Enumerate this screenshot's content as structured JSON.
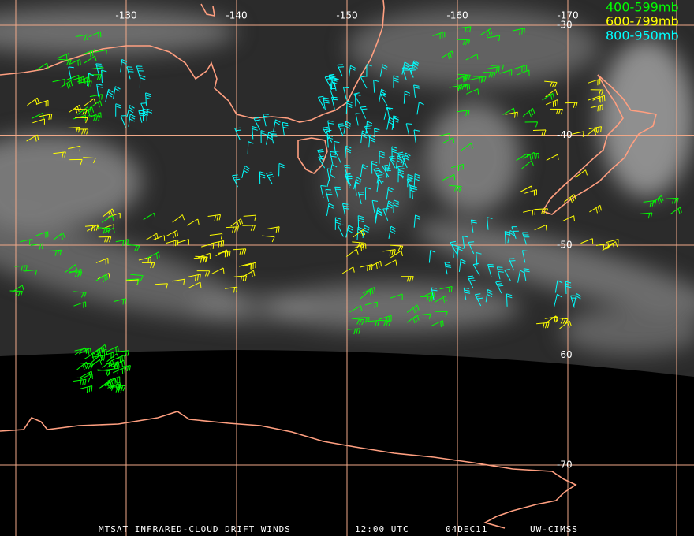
{
  "map": {
    "longitudes": [
      -130,
      -140,
      -150,
      -160,
      -170
    ],
    "latitudes": [
      -30,
      -40,
      -50,
      -60,
      -70
    ]
  },
  "legend": [
    {
      "label": "400-599mb",
      "color": "#00ff00"
    },
    {
      "label": "600-799mb",
      "color": "#ffff00"
    },
    {
      "label": "800-950mb",
      "color": "#00ffff"
    }
  ],
  "footer": [
    "MTSAT INFRARED-CLOUD DRIFT WINDS",
    "12:00 UTC",
    "04DEC11",
    "UW-CIMSS"
  ]
}
